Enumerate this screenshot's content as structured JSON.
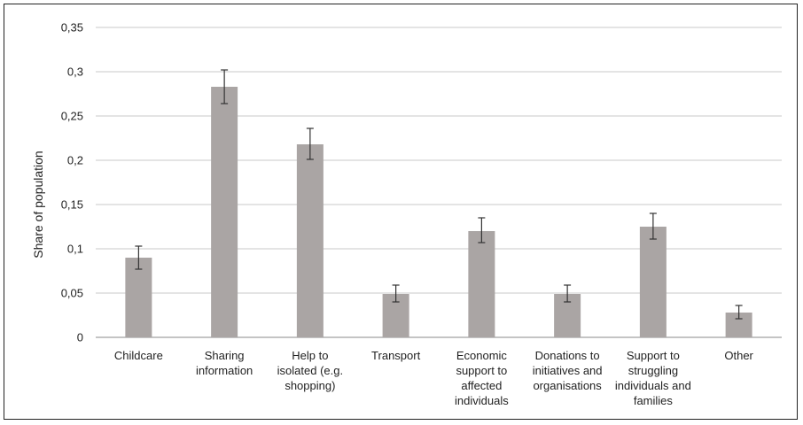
{
  "chart_data": {
    "type": "bar",
    "ylabel": "Share of population",
    "xlabel": "",
    "ylim": [
      0,
      0.35
    ],
    "yticks": [
      {
        "value": 0,
        "label": "0"
      },
      {
        "value": 0.05,
        "label": "0,05"
      },
      {
        "value": 0.1,
        "label": "0,1"
      },
      {
        "value": 0.15,
        "label": "0,15"
      },
      {
        "value": 0.2,
        "label": "0,2"
      },
      {
        "value": 0.25,
        "label": "0,25"
      },
      {
        "value": 0.3,
        "label": "0,3"
      },
      {
        "value": 0.35,
        "label": "0,35"
      }
    ],
    "grid": true,
    "error_bars": true,
    "bar_color": "#aaa5a4",
    "categories": [
      {
        "lines": [
          "Childcare"
        ],
        "value": 0.09,
        "err_low": 0.077,
        "err_high": 0.103
      },
      {
        "lines": [
          "Sharing",
          "information"
        ],
        "value": 0.283,
        "err_low": 0.264,
        "err_high": 0.302
      },
      {
        "lines": [
          "Help to",
          "isolated (e.g.",
          "shopping)"
        ],
        "value": 0.218,
        "err_low": 0.201,
        "err_high": 0.236
      },
      {
        "lines": [
          "Transport"
        ],
        "value": 0.049,
        "err_low": 0.04,
        "err_high": 0.059
      },
      {
        "lines": [
          "Economic",
          "support to",
          "affected",
          "individuals"
        ],
        "value": 0.12,
        "err_low": 0.107,
        "err_high": 0.135
      },
      {
        "lines": [
          "Donations to",
          "initiatives and",
          "organisations"
        ],
        "value": 0.049,
        "err_low": 0.04,
        "err_high": 0.059
      },
      {
        "lines": [
          "Support to",
          "struggling",
          "individuals and",
          "families"
        ],
        "value": 0.125,
        "err_low": 0.111,
        "err_high": 0.14
      },
      {
        "lines": [
          "Other"
        ],
        "value": 0.028,
        "err_low": 0.021,
        "err_high": 0.036
      }
    ]
  }
}
